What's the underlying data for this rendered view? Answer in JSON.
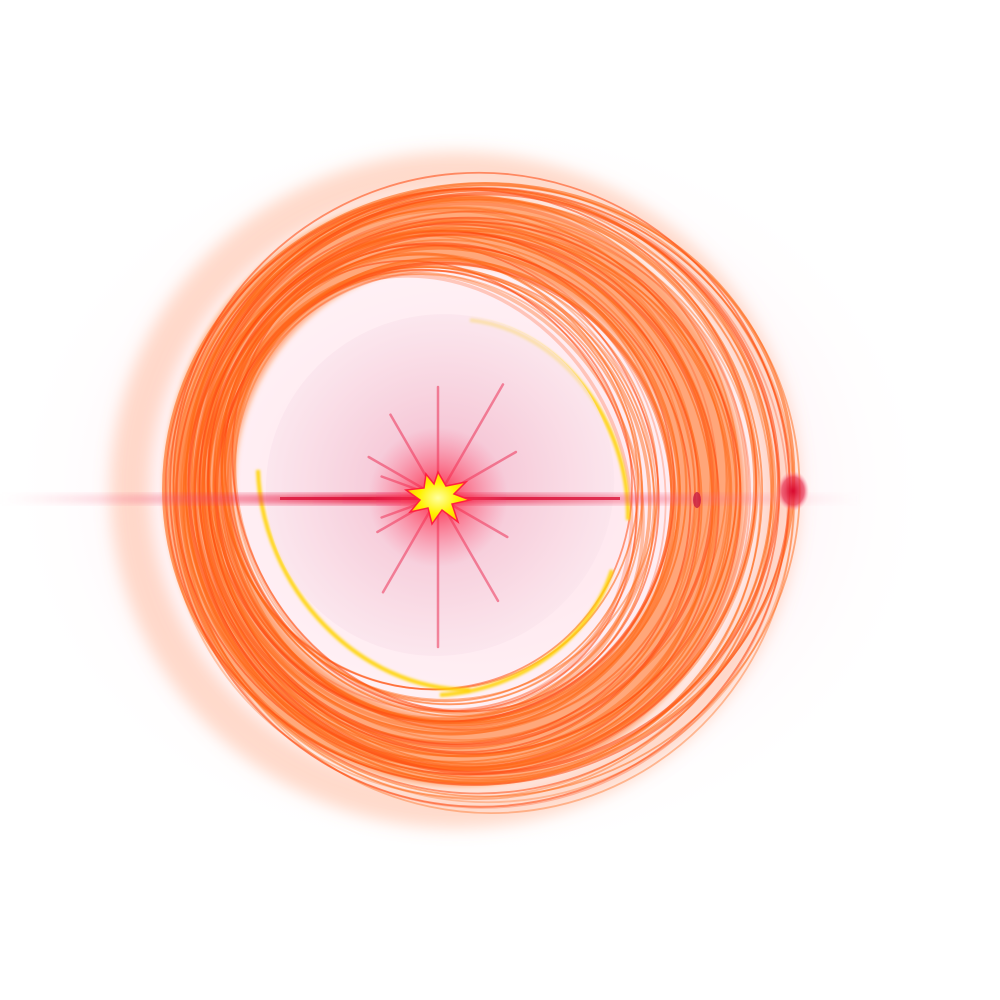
{
  "scene": {
    "subject": "lens-flare-orbital-rings",
    "colors": {
      "background": "#ffffff",
      "haze": "#ffd6e0",
      "ring_primary": "#ff6a1a",
      "ring_secondary": "#ff4a10",
      "ring_highlight": "#ffd400",
      "core": "#fff200",
      "core_glow": "#ff1a3a",
      "streak": "#e8103a",
      "inner_fill": "#f7d7e3"
    }
  }
}
